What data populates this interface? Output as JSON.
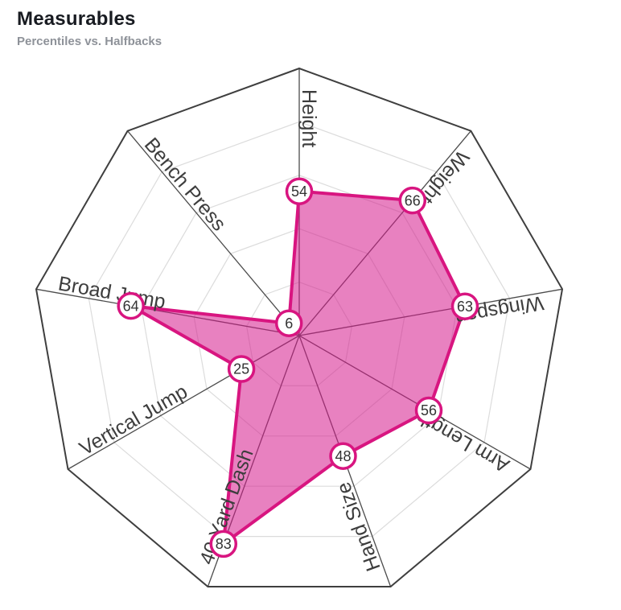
{
  "header": {
    "title": "Measurables",
    "subtitle": "Percentiles vs. Halfbacks"
  },
  "chart_data": {
    "type": "radar",
    "title": "Measurables",
    "subtitle": "Percentiles vs. Halfbacks",
    "axes": [
      "Height",
      "Weight",
      "Wingspan",
      "Arm Length",
      "Hand Size",
      "40 Yard Dash",
      "Vertical Jump",
      "Broad Jump",
      "Bench Press"
    ],
    "values": [
      54,
      66,
      63,
      56,
      48,
      83,
      25,
      64,
      6
    ],
    "scale": {
      "min": 0,
      "max": 100,
      "grid_rings": 5
    },
    "legend": "none",
    "grid": "on",
    "colors": {
      "series_stroke": "#d81580",
      "series_fill": "#d61a8c",
      "series_fill_opacity": "0.55",
      "grid_line": "#dcdcdc",
      "outer_ring": "#3f3f3f",
      "axis_spoke": "#4c4c4c",
      "axis_label": "#3d3d3d",
      "marker_fill": "#ffffff",
      "marker_text": "#333333",
      "title_color": "#181b21",
      "subtitle_color": "#8e9299",
      "background": "#ffffff"
    }
  }
}
